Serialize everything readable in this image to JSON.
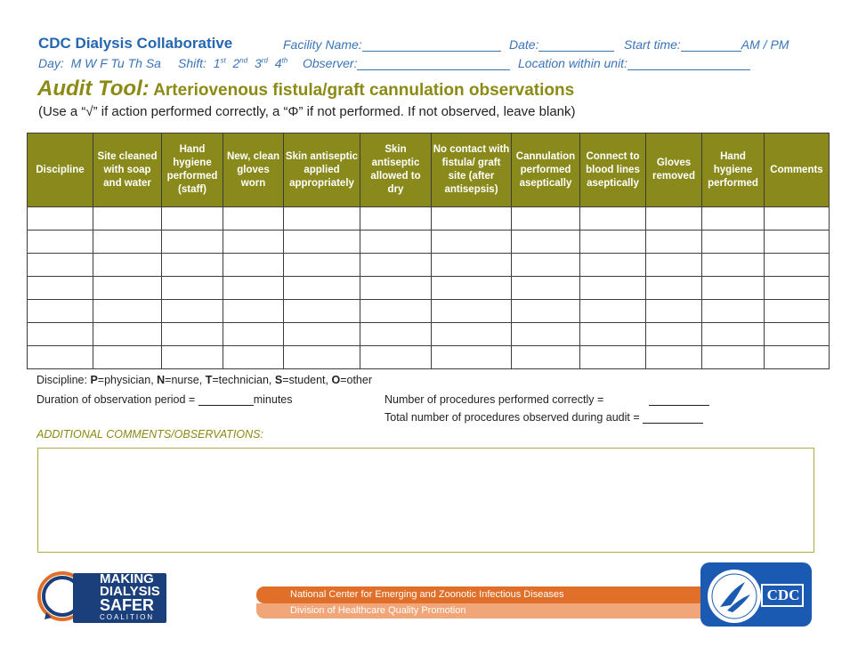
{
  "header": {
    "org": "CDC Dialysis Collaborative",
    "facility_label": "Facility Name:",
    "date_label": "Date:",
    "start_label": "Start time:",
    "ampm": "AM / PM",
    "day_label": "Day:",
    "days": "M W F Tu Th Sa",
    "shift_label": "Shift:",
    "observer_label": "Observer:",
    "location_label": "Location within unit:"
  },
  "title": {
    "main": "Audit Tool:",
    "sub": "Arteriovenous fistula/graft cannulation observations"
  },
  "instructions": "(Use a “√” if action performed correctly, a “Φ” if not performed. If not observed, leave blank)",
  "table": {
    "columns": [
      "Discipline",
      "Site cleaned with soap and water",
      "Hand hygiene performed (staff)",
      "New, clean gloves worn",
      "Skin antiseptic applied appropriately",
      "Skin antiseptic allowed to dry",
      "No contact with fistula/ graft site (after antisepsis)",
      "Cannulation performed aseptically",
      "Connect to blood lines aseptically",
      "Gloves removed",
      "Hand hygiene performed",
      "Comments"
    ],
    "row_count": 7
  },
  "legend": {
    "prefix": "Discipline: ",
    "p": "P",
    "p_text": "=physician, ",
    "n": "N",
    "n_text": "=nurse, ",
    "t": "T",
    "t_text": "=technician, ",
    "s": "S",
    "s_text": "=student, ",
    "o": "O",
    "o_text": "=other"
  },
  "duration": {
    "label": "Duration of observation period =",
    "unit": "minutes"
  },
  "correct_label": "Number of procedures performed correctly =",
  "total_label": "Total number of procedures observed during audit =",
  "additional_label": "ADDITIONAL COMMENTS/OBSERVATIONS:",
  "footer": {
    "logo_lines": [
      "MAKING",
      "DIALYSIS",
      "SAFER",
      "COALITION"
    ],
    "banner_line1": "National Center for Emerging and Zoonotic Infectious Diseases",
    "banner_line2": "Division of Healthcare Quality Promotion",
    "cdc": "CDC"
  },
  "colors": {
    "olive": "#8a8a1c",
    "blue": "#2466b0",
    "orange": "#e06f2a",
    "navy": "#1b3f7a"
  }
}
